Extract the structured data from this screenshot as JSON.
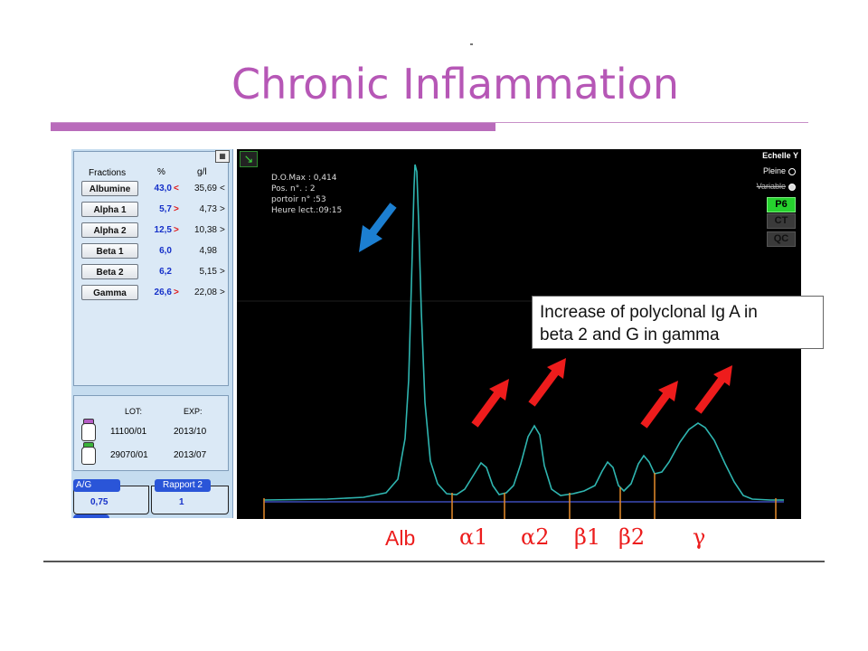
{
  "slide": {
    "title": "Chronic Inflammation"
  },
  "fractions_table": {
    "headers": {
      "fractions": "Fractions",
      "percent": "%",
      "gl": "g/l"
    },
    "rows": [
      {
        "name": "Albumine",
        "percent": "43,0",
        "arrow": "<",
        "arrow_color": "#e01515",
        "gl": "35,69",
        "chevron": "<"
      },
      {
        "name": "Alpha 1",
        "percent": "5,7",
        "arrow": ">",
        "arrow_color": "#e01515",
        "gl": "4,73",
        "chevron": ">"
      },
      {
        "name": "Alpha 2",
        "percent": "12,5",
        "arrow": ">",
        "arrow_color": "#e01515",
        "gl": "10,38",
        "chevron": ">"
      },
      {
        "name": "Beta 1",
        "percent": "6,0",
        "arrow": "",
        "arrow_color": "#e01515",
        "gl": "4,98",
        "chevron": ""
      },
      {
        "name": "Beta 2",
        "percent": "6,2",
        "arrow": "",
        "arrow_color": "#e01515",
        "gl": "5,15",
        "chevron": ">"
      },
      {
        "name": "Gamma",
        "percent": "26,6",
        "arrow": ">",
        "arrow_color": "#e01515",
        "gl": "22,08",
        "chevron": ">"
      }
    ]
  },
  "reagents": {
    "lot_header": "LOT:",
    "exp_header": "EXP:",
    "rows": [
      {
        "lot": "11100/01",
        "exp": "2013/10",
        "icon": "purple-bottle-icon"
      },
      {
        "lot": "29070/01",
        "exp": "2013/07",
        "icon": "green-bottle-icon"
      }
    ]
  },
  "ratios": {
    "ag_label": "A/G",
    "ag_value": "0,75",
    "rapport_label": "Rapport 2",
    "rapport_value": "1"
  },
  "scan_info": {
    "do_max": "D.O.Max : 0,414",
    "pos": "Pos. n°.   : 2",
    "portoir": "portoir n° :53",
    "heure": "Heure lect.:09:15"
  },
  "scale_panel": {
    "title": "Echelle Y",
    "pleine": "Pleine",
    "variable": "Variable",
    "buttons": [
      "P6",
      "CT",
      "QC"
    ]
  },
  "annotation": {
    "line1": "Increase of polyclonal Ig A in",
    "line2": "beta 2 and G in gamma"
  },
  "fraction_labels": {
    "alb": "Alb",
    "alpha1": "α1",
    "alpha2": "α2",
    "beta1": "β1",
    "beta2": "β2",
    "gamma": "γ"
  },
  "colors": {
    "title": "#b657b6",
    "curve": "#2fb5b0",
    "separator": "#e58a2a",
    "baseline": "#3c4bb8",
    "red_arrow": "#ee1c1c",
    "blue_arrow": "#1c7fd1",
    "label_red": "#ec1d1d"
  },
  "icons": [
    "green-arrow-icon",
    "calculator-icon",
    "purple-bottle-icon",
    "green-bottle-icon"
  ]
}
